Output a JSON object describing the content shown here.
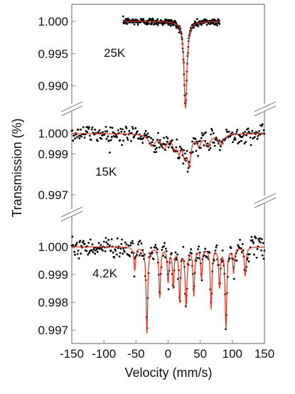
{
  "chart_data": {
    "type": "scatter",
    "xlabel": "Velocity (mm/s)",
    "ylabel": "Transmission (%)",
    "xlim": [
      -150,
      150
    ],
    "xticks": [
      -150,
      -100,
      -50,
      0,
      50,
      100,
      150
    ],
    "grid": false,
    "legend": "none",
    "colors": {
      "data": "#000000",
      "fit": "#e0301e",
      "axis": "#7f7f7f"
    },
    "panels": [
      {
        "label": "25K",
        "ylim": [
          0.9872,
          1.0022
        ],
        "yticks": [
          1.0,
          0.995,
          0.99
        ],
        "ytick_labels": [
          "1.000",
          "0.995",
          "0.990"
        ],
        "data_x_range": [
          -70,
          80
        ],
        "baseline": 1.0,
        "noise": 0.00028,
        "fit_lines": [
          {
            "center": 27,
            "depth": 0.0135,
            "width": 5.5
          }
        ]
      },
      {
        "label": "15K",
        "ylim": [
          0.9963,
          1.0011
        ],
        "yticks": [
          1.0,
          0.999,
          0.997
        ],
        "ytick_labels": [
          "1.000",
          "0.999",
          "0.997"
        ],
        "data_x_range": [
          -150,
          150
        ],
        "baseline": 1.0,
        "noise": 0.00022,
        "fit_lines": [
          {
            "center": -25,
            "depth": 0.00052,
            "width": 14
          },
          {
            "center": -6,
            "depth": 0.00062,
            "width": 10
          },
          {
            "center": 10,
            "depth": 0.0006,
            "width": 8
          },
          {
            "center": 17,
            "depth": 0.00066,
            "width": 6
          },
          {
            "center": 26,
            "depth": 0.00098,
            "width": 8
          },
          {
            "center": 33,
            "depth": 0.0013,
            "width": 6
          },
          {
            "center": 48,
            "depth": 0.0005,
            "width": 8
          },
          {
            "center": 62,
            "depth": 0.00058,
            "width": 8
          },
          {
            "center": 82,
            "depth": 0.00052,
            "width": 10
          }
        ]
      },
      {
        "label": "4.2K",
        "ylim": [
          0.99652,
          1.0011
        ],
        "yticks": [
          1.0,
          0.999,
          0.998,
          0.997
        ],
        "ytick_labels": [
          "1.000",
          "0.999",
          "0.998",
          "0.997"
        ],
        "data_x_range": [
          -150,
          150
        ],
        "baseline": 1.0,
        "noise": 0.00018,
        "fit_lines": [
          {
            "center": -52,
            "depth": 0.00085,
            "width": 3
          },
          {
            "center": -33,
            "depth": 0.0031,
            "width": 3
          },
          {
            "center": -13,
            "depth": 0.0018,
            "width": 3
          },
          {
            "center": 0,
            "depth": 0.0012,
            "width": 3
          },
          {
            "center": 8,
            "depth": 0.0014,
            "width": 3
          },
          {
            "center": 18,
            "depth": 0.0019,
            "width": 3
          },
          {
            "center": 28,
            "depth": 0.0021,
            "width": 3.5
          },
          {
            "center": 40,
            "depth": 0.0017,
            "width": 3
          },
          {
            "center": 52,
            "depth": 0.0011,
            "width": 3
          },
          {
            "center": 67,
            "depth": 0.0022,
            "width": 3
          },
          {
            "center": 80,
            "depth": 0.0014,
            "width": 3
          },
          {
            "center": 90,
            "depth": 0.0029,
            "width": 3
          },
          {
            "center": 102,
            "depth": 0.0009,
            "width": 3
          },
          {
            "center": 120,
            "depth": 0.00105,
            "width": 3
          }
        ]
      }
    ]
  }
}
